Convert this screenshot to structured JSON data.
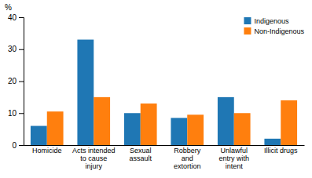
{
  "chart_data": {
    "type": "bar",
    "categories": [
      "Homicide",
      "Acts intended\nto cause\ninjury",
      "Sexual\nassault",
      "Robbery\nand\nextortion",
      "Unlawful\nentry with\nintent",
      "Illicit drugs"
    ],
    "series": [
      {
        "name": "Indigenous",
        "values": [
          6.0,
          33.0,
          10.0,
          8.5,
          15.0,
          2.0
        ]
      },
      {
        "name": "Non-Indigenous",
        "values": [
          10.5,
          15.0,
          13.0,
          9.5,
          10.0,
          14.0
        ]
      }
    ],
    "ylabel": "%",
    "ylim": [
      0,
      40
    ],
    "yticks": [
      0,
      10,
      20,
      30,
      40
    ],
    "legend": "upper right",
    "grid": false
  }
}
